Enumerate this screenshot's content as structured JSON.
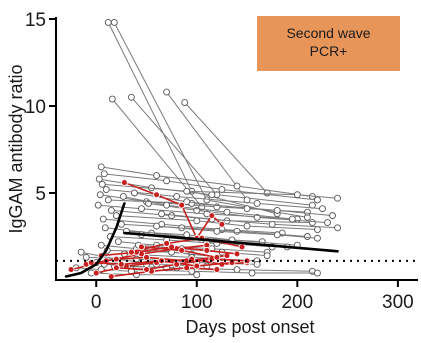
{
  "chart_data": {
    "type": "line",
    "xlabel": "Days post onset",
    "ylabel": "IgGAM antibody ratio",
    "xlim": [
      -40,
      320
    ],
    "ylim": [
      0,
      15
    ],
    "xticks": [
      0,
      100,
      200,
      300
    ],
    "yticks": [
      5,
      10,
      15
    ],
    "annotation": {
      "text_lines": [
        "Second wave",
        "PCR+"
      ],
      "color": "#E8955A"
    },
    "threshold": {
      "y": 1.1,
      "style": "dotted",
      "color": "#000000"
    },
    "colors": {
      "gray_line": "#7a7a7a",
      "gray_marker_edge": "#555555",
      "red": "#C8201E",
      "fit": "#000000"
    },
    "gray_series": [
      {
        "x": [
          12,
          95,
          180
        ],
        "y": [
          14.8,
          5.1,
          3.8
        ]
      },
      {
        "x": [
          18,
          110,
          210
        ],
        "y": [
          14.8,
          4.6,
          3.6
        ]
      },
      {
        "x": [
          16,
          105
        ],
        "y": [
          10.4,
          4.2
        ]
      },
      {
        "x": [
          35,
          120,
          215
        ],
        "y": [
          10.5,
          4.9,
          4.3
        ]
      },
      {
        "x": [
          70,
          150
        ],
        "y": [
          10.8,
          4.6
        ]
      },
      {
        "x": [
          88,
          170
        ],
        "y": [
          10.2,
          5.0
        ]
      },
      {
        "x": [
          5,
          60,
          140,
          215
        ],
        "y": [
          6.5,
          6.0,
          5.4,
          4.8
        ]
      },
      {
        "x": [
          8,
          70,
          125,
          220
        ],
        "y": [
          6.1,
          5.7,
          5.2,
          4.6
        ]
      },
      {
        "x": [
          3,
          55,
          115
        ],
        "y": [
          5.8,
          5.3,
          4.9
        ]
      },
      {
        "x": [
          6,
          90,
          200,
          240
        ],
        "y": [
          5.5,
          5.1,
          4.9,
          4.7
        ]
      },
      {
        "x": [
          10,
          80,
          160,
          225
        ],
        "y": [
          5.2,
          4.8,
          4.4,
          4.1
        ]
      },
      {
        "x": [
          4,
          50,
          120,
          210
        ],
        "y": [
          4.9,
          4.5,
          4.2,
          3.9
        ]
      },
      {
        "x": [
          12,
          95,
          180,
          235
        ],
        "y": [
          4.6,
          4.4,
          4.0,
          3.7
        ]
      },
      {
        "x": [
          2,
          45,
          110,
          200
        ],
        "y": [
          4.3,
          4.1,
          3.8,
          3.5
        ]
      },
      {
        "x": [
          15,
          75,
          130,
          215
        ],
        "y": [
          4.0,
          3.7,
          3.4,
          3.3
        ]
      },
      {
        "x": [
          20,
          100,
          150,
          220
        ],
        "y": [
          3.7,
          3.4,
          3.1,
          2.9
        ]
      },
      {
        "x": [
          7,
          65,
          125,
          185
        ],
        "y": [
          3.5,
          3.2,
          2.9,
          2.7
        ]
      },
      {
        "x": [
          25,
          85,
          140,
          210
        ],
        "y": [
          3.2,
          3.0,
          2.8,
          2.5
        ]
      },
      {
        "x": [
          9,
          55,
          105,
          165
        ],
        "y": [
          3.0,
          2.7,
          2.4,
          2.2
        ]
      },
      {
        "x": [
          30,
          90,
          135,
          200
        ],
        "y": [
          2.8,
          2.6,
          2.3,
          2.0
        ]
      },
      {
        "x": [
          14,
          70,
          120,
          190
        ],
        "y": [
          2.5,
          2.3,
          2.1,
          1.9
        ]
      },
      {
        "x": [
          22,
          60,
          115,
          170
        ],
        "y": [
          2.2,
          2.0,
          1.8,
          1.6
        ]
      },
      {
        "x": [
          5,
          40,
          95
        ],
        "y": [
          2.0,
          1.8,
          1.5
        ]
      },
      {
        "x": [
          11,
          75,
          125
        ],
        "y": [
          1.7,
          1.6,
          1.3
        ]
      },
      {
        "x": [
          28,
          95,
          160
        ],
        "y": [
          1.5,
          1.3,
          1.1
        ]
      },
      {
        "x": [
          -10,
          40,
          100,
          160
        ],
        "y": [
          1.3,
          1.2,
          1.0,
          0.9
        ]
      },
      {
        "x": [
          0,
          50,
          110
        ],
        "y": [
          1.0,
          0.9,
          0.8
        ]
      },
      {
        "x": [
          18,
          80,
          140,
          215
        ],
        "y": [
          0.8,
          0.7,
          0.6,
          0.5
        ]
      },
      {
        "x": [
          35,
          95,
          155,
          220
        ],
        "y": [
          0.6,
          0.5,
          0.4,
          0.4
        ]
      },
      {
        "x": [
          -5,
          40,
          100
        ],
        "y": [
          0.4,
          0.3,
          0.3
        ]
      },
      {
        "x": [
          -15,
          20,
          60
        ],
        "y": [
          1.6,
          1.2,
          0.9
        ]
      },
      {
        "x": [
          45,
          110,
          175
        ],
        "y": [
          2.6,
          2.2,
          1.9
        ]
      },
      {
        "x": [
          60,
          120,
          180,
          220
        ],
        "y": [
          3.1,
          2.8,
          2.6,
          2.4
        ]
      },
      {
        "x": [
          38,
          90,
          150
        ],
        "y": [
          5.0,
          4.5,
          4.1
        ]
      },
      {
        "x": [
          52,
          100,
          160,
          230
        ],
        "y": [
          4.4,
          4.0,
          3.6,
          3.3
        ]
      },
      {
        "x": [
          27,
          70,
          130,
          195
        ],
        "y": [
          4.8,
          4.3,
          3.9,
          3.5
        ]
      },
      {
        "x": [
          65,
          115,
          175,
          240
        ],
        "y": [
          3.8,
          3.5,
          3.2,
          3.0
        ]
      },
      {
        "x": [
          42,
          85,
          125,
          170
        ],
        "y": [
          2.0,
          1.8,
          1.6,
          1.4
        ]
      },
      {
        "x": [
          8,
          30,
          70,
          120
        ],
        "y": [
          0.9,
          0.8,
          0.7,
          0.6
        ]
      },
      {
        "x": [
          -20,
          5,
          35
        ],
        "y": [
          0.7,
          0.6,
          0.5
        ]
      }
    ],
    "red_series": [
      {
        "x": [
          28,
          60,
          85,
          100,
          115,
          125
        ],
        "y": [
          5.6,
          4.9,
          4.3,
          2.4,
          3.7,
          3.2
        ]
      },
      {
        "x": [
          -25,
          10,
          45,
          80,
          110
        ],
        "y": [
          0.6,
          1.1,
          1.5,
          1.8,
          2.0
        ]
      },
      {
        "x": [
          -10,
          20,
          50,
          90,
          130
        ],
        "y": [
          0.9,
          1.2,
          1.3,
          1.1,
          1.4
        ]
      },
      {
        "x": [
          0,
          30,
          60,
          95,
          125,
          150
        ],
        "y": [
          0.4,
          0.8,
          1.0,
          1.2,
          0.9,
          1.0
        ]
      },
      {
        "x": [
          5,
          40,
          75,
          110,
          140
        ],
        "y": [
          1.4,
          1.6,
          1.9,
          1.7,
          1.5
        ]
      },
      {
        "x": [
          15,
          55,
          90,
          120
        ],
        "y": [
          0.2,
          0.5,
          0.7,
          0.6
        ]
      },
      {
        "x": [
          -5,
          25,
          65,
          100,
          135
        ],
        "y": [
          1.0,
          0.9,
          1.1,
          0.8,
          1.0
        ]
      },
      {
        "x": [
          35,
          70,
          105,
          145
        ],
        "y": [
          1.6,
          2.1,
          2.4,
          1.9
        ]
      },
      {
        "x": [
          20,
          50,
          80,
          115,
          150
        ],
        "y": [
          0.7,
          0.6,
          0.9,
          1.2,
          1.1
        ]
      },
      {
        "x": [
          45,
          85,
          120
        ],
        "y": [
          1.9,
          1.7,
          1.3
        ]
      }
    ],
    "fit_lines": [
      {
        "x": [
          -30,
          -15,
          0,
          10,
          20,
          28
        ],
        "y": [
          0.2,
          0.4,
          0.9,
          1.7,
          3.0,
          4.4
        ]
      },
      {
        "x": [
          28,
          80,
          140,
          200,
          240
        ],
        "y": [
          2.7,
          2.45,
          2.15,
          1.85,
          1.65
        ]
      }
    ]
  }
}
